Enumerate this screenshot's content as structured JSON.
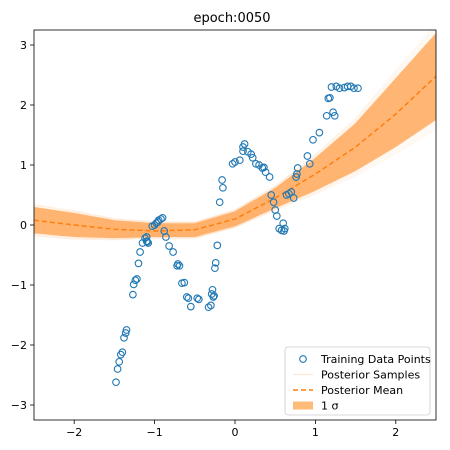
{
  "chart_data": {
    "type": "scatter",
    "title": "epoch:0050",
    "xlim": [
      -2.5,
      2.5
    ],
    "ylim": [
      -3.25,
      3.25
    ],
    "x_ticks": [
      -2,
      -1,
      0,
      1,
      2
    ],
    "y_ticks": [
      -3,
      -2,
      -1,
      0,
      1,
      2,
      3
    ],
    "grid": false,
    "legend_placement": "lower-right",
    "legend": [
      {
        "label": "Training Data Points",
        "marker": "open-circle",
        "color": "#1f77b4"
      },
      {
        "label": "Posterior Samples",
        "marker": "line",
        "color": "#ff7f0e"
      },
      {
        "label": "Posterior Mean",
        "marker": "dashed-line",
        "color": "#ff7f0e"
      },
      {
        "label": "1 σ",
        "marker": "patch",
        "color": "#ffbb78"
      }
    ],
    "colors": {
      "points": "#1f77b4",
      "mean": "#ff7f0e",
      "band": "#ff9f4a",
      "samples": "#ff7f0e"
    },
    "training_points": {
      "x": [
        -1.48,
        -1.46,
        -1.44,
        -1.42,
        -1.4,
        -1.38,
        -1.36,
        -1.35,
        -1.27,
        -1.26,
        -1.24,
        -1.22,
        -1.2,
        -1.18,
        -1.15,
        -1.12,
        -1.1,
        -1.1,
        -1.09,
        -1.08,
        -1.03,
        -1.0,
        -0.98,
        -0.96,
        -0.95,
        -0.92,
        -0.9,
        -0.88,
        -0.86,
        -0.82,
        -0.77,
        -0.72,
        -0.71,
        -0.69,
        -0.66,
        -0.63,
        -0.6,
        -0.58,
        -0.55,
        -0.47,
        -0.45,
        -0.33,
        -0.3,
        -0.29,
        -0.28,
        -0.27,
        -0.26,
        -0.25,
        -0.24,
        -0.22,
        -0.19,
        -0.16,
        -0.15,
        -0.03,
        0.0,
        0.06,
        0.1,
        0.1,
        0.12,
        0.16,
        0.2,
        0.22,
        0.26,
        0.3,
        0.34,
        0.36,
        0.38,
        0.43,
        0.45,
        0.48,
        0.5,
        0.52,
        0.55,
        0.58,
        0.6,
        0.61,
        0.62,
        0.64,
        0.67,
        0.7,
        0.73,
        0.76,
        0.77,
        0.78,
        0.9,
        0.93,
        0.97,
        1.05,
        1.14,
        1.16,
        1.18,
        1.2,
        1.22,
        1.24,
        1.26,
        1.3,
        1.36,
        1.4,
        1.44,
        1.48,
        1.53
      ],
      "y": [
        -2.62,
        -2.4,
        -2.28,
        -2.16,
        -2.12,
        -1.88,
        -1.8,
        -1.75,
        -1.16,
        -0.99,
        -0.92,
        -0.9,
        -0.64,
        -0.45,
        -0.3,
        -0.22,
        -0.27,
        -0.2,
        -0.28,
        -0.3,
        -0.02,
        0.0,
        0.03,
        0.05,
        0.08,
        0.1,
        0.12,
        -0.1,
        -0.2,
        -0.35,
        -0.45,
        -0.68,
        -0.65,
        -0.68,
        -0.97,
        -0.96,
        -1.2,
        -1.22,
        -1.36,
        -1.22,
        -1.24,
        -1.37,
        -1.34,
        -1.15,
        -1.08,
        -1.2,
        -1.18,
        -0.72,
        -0.63,
        -0.34,
        0.38,
        0.75,
        0.62,
        1.02,
        1.05,
        1.08,
        1.3,
        1.23,
        1.35,
        1.22,
        1.18,
        1.12,
        1.02,
        1.0,
        0.95,
        0.96,
        0.88,
        0.8,
        0.5,
        0.38,
        0.25,
        0.15,
        -0.06,
        -0.09,
        0.03,
        -0.1,
        -0.06,
        0.5,
        0.52,
        0.55,
        0.45,
        0.8,
        0.85,
        0.95,
        1.15,
        1.02,
        1.42,
        1.54,
        1.82,
        2.11,
        2.12,
        2.3,
        1.88,
        1.82,
        2.31,
        2.28,
        2.29,
        2.31,
        2.31,
        2.28,
        2.28
      ]
    },
    "posterior_mean": {
      "x": [
        -2.5,
        -2.0,
        -1.5,
        -1.0,
        -0.5,
        0.0,
        0.5,
        1.0,
        1.5,
        2.0,
        2.5
      ],
      "y": [
        0.08,
        0.0,
        -0.07,
        -0.1,
        -0.08,
        0.1,
        0.45,
        0.85,
        1.3,
        1.85,
        2.48
      ]
    },
    "band_upper": [
      0.3,
      0.2,
      0.08,
      0.03,
      0.03,
      0.23,
      0.62,
      1.12,
      1.7,
      2.45,
      3.2
    ],
    "band_lower": [
      -0.14,
      -0.2,
      -0.22,
      -0.2,
      -0.2,
      -0.02,
      0.28,
      0.57,
      0.9,
      1.3,
      1.75
    ]
  }
}
